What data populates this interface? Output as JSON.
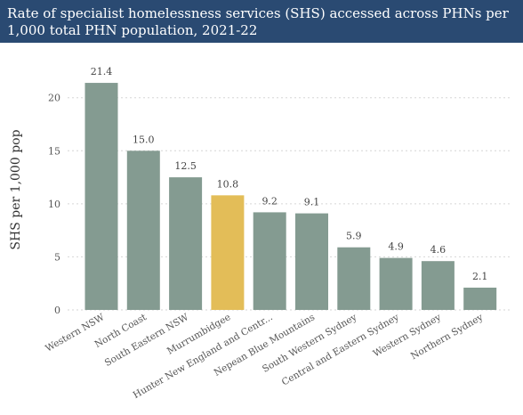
{
  "chart_data": {
    "type": "bar",
    "title": "Rate of specialist homelessness services (SHS) accessed across PHNs per 1,000 total PHN population, 2021-22",
    "xlabel": "",
    "ylabel": "SHS per 1,000 pop",
    "ylim": [
      0,
      23
    ],
    "yticks": [
      "0",
      "5",
      "10",
      "15",
      "20"
    ],
    "grid": true,
    "categories": [
      "Western NSW",
      "North Coast",
      "South Eastern NSW",
      "Murrumbidgee",
      "Hunter New England and Centr...",
      "Nepean Blue Mountains",
      "South Western Sydney",
      "Central and Eastern Sydney",
      "Western Sydney",
      "Northern Sydney"
    ],
    "values": [
      21.4,
      15.0,
      12.5,
      10.8,
      9.2,
      9.1,
      5.9,
      4.9,
      4.6,
      2.1
    ],
    "value_labels": [
      "21.4",
      "15.0",
      "12.5",
      "10.8",
      "9.2",
      "9.1",
      "5.9",
      "4.9",
      "4.6",
      "2.1"
    ],
    "highlight_category": "Murrumbidgee",
    "colors": {
      "bar": "#849b91",
      "highlight": "#e3bd58",
      "title_bg": "#2a4a72",
      "title_text": "#ffffff",
      "grid": "#d6d6d6"
    }
  }
}
